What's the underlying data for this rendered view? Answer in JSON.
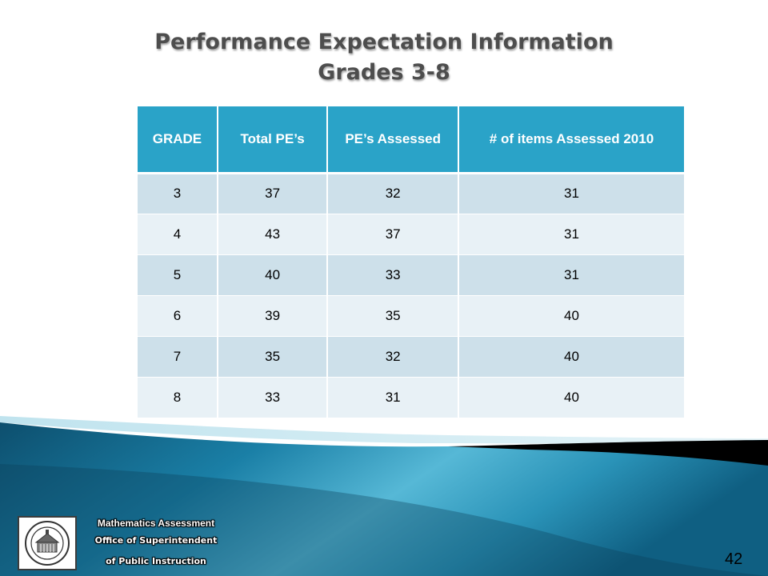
{
  "title": {
    "line1": "Performance Expectation Information",
    "line2": "Grades 3-8"
  },
  "table": {
    "headers": [
      "GRADE",
      "Total PE’s",
      "PE’s Assessed",
      "# of items Assessed 2010"
    ],
    "rows": [
      [
        "3",
        "37",
        "32",
        "31"
      ],
      [
        "4",
        "43",
        "37",
        "31"
      ],
      [
        "5",
        "40",
        "33",
        "31"
      ],
      [
        "6",
        "39",
        "35",
        "40"
      ],
      [
        "7",
        "35",
        "32",
        "40"
      ],
      [
        "8",
        "33",
        "31",
        "40"
      ]
    ]
  },
  "footer": {
    "line1": "Mathematics Assessment",
    "line2": "Office of Superintendent",
    "line3": "of Public Instruction",
    "page_number": "42",
    "seal_icon": "state-seal-icon"
  },
  "colors": {
    "header_bg": "#2aa3c8",
    "row_odd": "#cde0ea",
    "row_even": "#e8f1f6",
    "title": "#4d4d4d"
  }
}
